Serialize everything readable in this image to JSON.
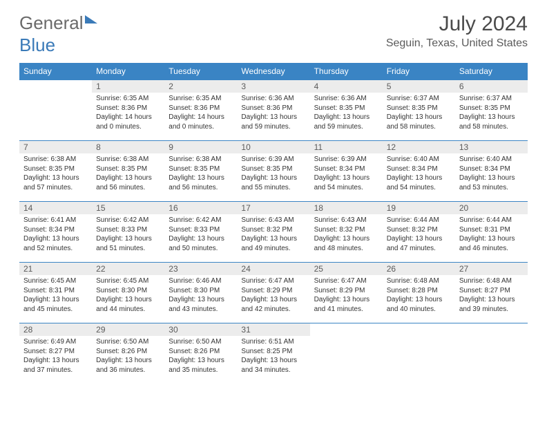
{
  "logo": {
    "part1": "General",
    "part2": "Blue"
  },
  "title": "July 2024",
  "location": "Seguin, Texas, United States",
  "colors": {
    "header_bg": "#3a84c4",
    "header_text": "#ffffff",
    "daynum_bg": "#ececec",
    "row_border": "#3a84c4",
    "logo_gray": "#6a6a6a",
    "logo_blue": "#3a7ab8"
  },
  "weekdays": [
    "Sunday",
    "Monday",
    "Tuesday",
    "Wednesday",
    "Thursday",
    "Friday",
    "Saturday"
  ],
  "weeks": [
    [
      {
        "day": "",
        "sunrise": "",
        "sunset": "",
        "daylight": ""
      },
      {
        "day": "1",
        "sunrise": "Sunrise: 6:35 AM",
        "sunset": "Sunset: 8:36 PM",
        "daylight": "Daylight: 14 hours and 0 minutes."
      },
      {
        "day": "2",
        "sunrise": "Sunrise: 6:35 AM",
        "sunset": "Sunset: 8:36 PM",
        "daylight": "Daylight: 14 hours and 0 minutes."
      },
      {
        "day": "3",
        "sunrise": "Sunrise: 6:36 AM",
        "sunset": "Sunset: 8:36 PM",
        "daylight": "Daylight: 13 hours and 59 minutes."
      },
      {
        "day": "4",
        "sunrise": "Sunrise: 6:36 AM",
        "sunset": "Sunset: 8:35 PM",
        "daylight": "Daylight: 13 hours and 59 minutes."
      },
      {
        "day": "5",
        "sunrise": "Sunrise: 6:37 AM",
        "sunset": "Sunset: 8:35 PM",
        "daylight": "Daylight: 13 hours and 58 minutes."
      },
      {
        "day": "6",
        "sunrise": "Sunrise: 6:37 AM",
        "sunset": "Sunset: 8:35 PM",
        "daylight": "Daylight: 13 hours and 58 minutes."
      }
    ],
    [
      {
        "day": "7",
        "sunrise": "Sunrise: 6:38 AM",
        "sunset": "Sunset: 8:35 PM",
        "daylight": "Daylight: 13 hours and 57 minutes."
      },
      {
        "day": "8",
        "sunrise": "Sunrise: 6:38 AM",
        "sunset": "Sunset: 8:35 PM",
        "daylight": "Daylight: 13 hours and 56 minutes."
      },
      {
        "day": "9",
        "sunrise": "Sunrise: 6:38 AM",
        "sunset": "Sunset: 8:35 PM",
        "daylight": "Daylight: 13 hours and 56 minutes."
      },
      {
        "day": "10",
        "sunrise": "Sunrise: 6:39 AM",
        "sunset": "Sunset: 8:35 PM",
        "daylight": "Daylight: 13 hours and 55 minutes."
      },
      {
        "day": "11",
        "sunrise": "Sunrise: 6:39 AM",
        "sunset": "Sunset: 8:34 PM",
        "daylight": "Daylight: 13 hours and 54 minutes."
      },
      {
        "day": "12",
        "sunrise": "Sunrise: 6:40 AM",
        "sunset": "Sunset: 8:34 PM",
        "daylight": "Daylight: 13 hours and 54 minutes."
      },
      {
        "day": "13",
        "sunrise": "Sunrise: 6:40 AM",
        "sunset": "Sunset: 8:34 PM",
        "daylight": "Daylight: 13 hours and 53 minutes."
      }
    ],
    [
      {
        "day": "14",
        "sunrise": "Sunrise: 6:41 AM",
        "sunset": "Sunset: 8:34 PM",
        "daylight": "Daylight: 13 hours and 52 minutes."
      },
      {
        "day": "15",
        "sunrise": "Sunrise: 6:42 AM",
        "sunset": "Sunset: 8:33 PM",
        "daylight": "Daylight: 13 hours and 51 minutes."
      },
      {
        "day": "16",
        "sunrise": "Sunrise: 6:42 AM",
        "sunset": "Sunset: 8:33 PM",
        "daylight": "Daylight: 13 hours and 50 minutes."
      },
      {
        "day": "17",
        "sunrise": "Sunrise: 6:43 AM",
        "sunset": "Sunset: 8:32 PM",
        "daylight": "Daylight: 13 hours and 49 minutes."
      },
      {
        "day": "18",
        "sunrise": "Sunrise: 6:43 AM",
        "sunset": "Sunset: 8:32 PM",
        "daylight": "Daylight: 13 hours and 48 minutes."
      },
      {
        "day": "19",
        "sunrise": "Sunrise: 6:44 AM",
        "sunset": "Sunset: 8:32 PM",
        "daylight": "Daylight: 13 hours and 47 minutes."
      },
      {
        "day": "20",
        "sunrise": "Sunrise: 6:44 AM",
        "sunset": "Sunset: 8:31 PM",
        "daylight": "Daylight: 13 hours and 46 minutes."
      }
    ],
    [
      {
        "day": "21",
        "sunrise": "Sunrise: 6:45 AM",
        "sunset": "Sunset: 8:31 PM",
        "daylight": "Daylight: 13 hours and 45 minutes."
      },
      {
        "day": "22",
        "sunrise": "Sunrise: 6:45 AM",
        "sunset": "Sunset: 8:30 PM",
        "daylight": "Daylight: 13 hours and 44 minutes."
      },
      {
        "day": "23",
        "sunrise": "Sunrise: 6:46 AM",
        "sunset": "Sunset: 8:30 PM",
        "daylight": "Daylight: 13 hours and 43 minutes."
      },
      {
        "day": "24",
        "sunrise": "Sunrise: 6:47 AM",
        "sunset": "Sunset: 8:29 PM",
        "daylight": "Daylight: 13 hours and 42 minutes."
      },
      {
        "day": "25",
        "sunrise": "Sunrise: 6:47 AM",
        "sunset": "Sunset: 8:29 PM",
        "daylight": "Daylight: 13 hours and 41 minutes."
      },
      {
        "day": "26",
        "sunrise": "Sunrise: 6:48 AM",
        "sunset": "Sunset: 8:28 PM",
        "daylight": "Daylight: 13 hours and 40 minutes."
      },
      {
        "day": "27",
        "sunrise": "Sunrise: 6:48 AM",
        "sunset": "Sunset: 8:27 PM",
        "daylight": "Daylight: 13 hours and 39 minutes."
      }
    ],
    [
      {
        "day": "28",
        "sunrise": "Sunrise: 6:49 AM",
        "sunset": "Sunset: 8:27 PM",
        "daylight": "Daylight: 13 hours and 37 minutes."
      },
      {
        "day": "29",
        "sunrise": "Sunrise: 6:50 AM",
        "sunset": "Sunset: 8:26 PM",
        "daylight": "Daylight: 13 hours and 36 minutes."
      },
      {
        "day": "30",
        "sunrise": "Sunrise: 6:50 AM",
        "sunset": "Sunset: 8:26 PM",
        "daylight": "Daylight: 13 hours and 35 minutes."
      },
      {
        "day": "31",
        "sunrise": "Sunrise: 6:51 AM",
        "sunset": "Sunset: 8:25 PM",
        "daylight": "Daylight: 13 hours and 34 minutes."
      },
      {
        "day": "",
        "sunrise": "",
        "sunset": "",
        "daylight": ""
      },
      {
        "day": "",
        "sunrise": "",
        "sunset": "",
        "daylight": ""
      },
      {
        "day": "",
        "sunrise": "",
        "sunset": "",
        "daylight": ""
      }
    ]
  ]
}
